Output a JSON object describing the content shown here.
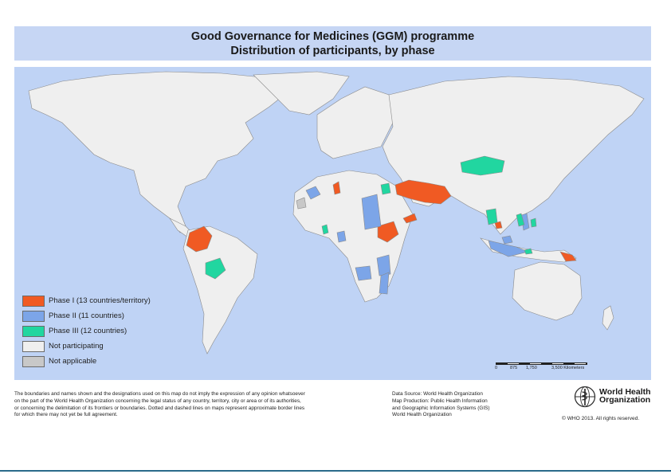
{
  "title": {
    "line1": "Good Governance for Medicines (GGM) programme",
    "line2": "Distribution of participants, by phase"
  },
  "colors": {
    "ocean": "#bfd3f5",
    "land": "#efefef",
    "border": "#8a8a8a",
    "phase1": "#f05a23",
    "phase2": "#7ca5e8",
    "phase3": "#21d6a0",
    "not_participating": "#efefef",
    "not_applicable": "#c8c8c8"
  },
  "legend": [
    {
      "label": "Phase I (13 countries/territory)",
      "color": "#f05a23"
    },
    {
      "label": "Phase II (11 countries)",
      "color": "#7ca5e8"
    },
    {
      "label": "Phase III (12 countries)",
      "color": "#21d6a0"
    },
    {
      "label": "Not participating",
      "color": "#efefef"
    },
    {
      "label": "Not applicable",
      "color": "#c8c8c8"
    }
  ],
  "scale": {
    "ticks": [
      "0",
      "875",
      "1,750",
      "3,500 Kilometers"
    ]
  },
  "disclaimer": [
    "The boundaries and names shown and the designations used on this map do not imply the expression of any opinion whatsoever",
    "on the part of the World Health Organization concerning the legal status of any country, territory, city or area or of its authorities,",
    "or concerning the delimitation of its frontiers or boundaries. Dotted and dashed lines on maps represent approximate border lines",
    "for which there may not yet be full agreement."
  ],
  "source": [
    "Data Source: World Health Organization",
    "Map Production: Public Health Information",
    "and Geographic Information Systems (GIS)",
    "World Health Organization"
  ],
  "organization": {
    "line1": "World Health",
    "line2": "Organization"
  },
  "copyright": "© WHO 2013. All rights reserved."
}
